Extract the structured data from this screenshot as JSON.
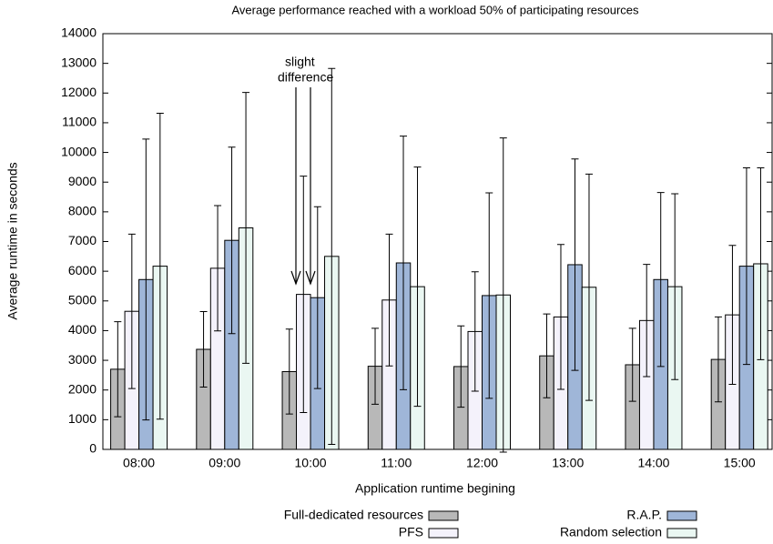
{
  "chart_data": {
    "type": "bar",
    "title": "Average performance reached with a workload 50% of participating resources",
    "x_label": "Application runtime begining",
    "y_label": "Average runtime in seconds",
    "annotation": [
      "slight",
      "difference"
    ],
    "categories": [
      "08:00",
      "09:00",
      "10:00",
      "11:00",
      "12:00",
      "13:00",
      "14:00",
      "15:00"
    ],
    "series": [
      {
        "name": "Full-dedicated resources",
        "color": "#b8b8b8",
        "values": [
          2700,
          3370,
          2620,
          2800,
          2790,
          3150,
          2850,
          3030
        ],
        "errors": [
          1600,
          1270,
          1430,
          1280,
          1370,
          1410,
          1230,
          1430
        ]
      },
      {
        "name": "PFS",
        "color": "#f4f2fb",
        "values": [
          4650,
          6100,
          5220,
          5030,
          3970,
          4460,
          4340,
          4530
        ],
        "errors": [
          2600,
          2110,
          3980,
          2220,
          2010,
          2440,
          1890,
          2340
        ]
      },
      {
        "name": "R.A.P.",
        "color": "#9fb6d8",
        "values": [
          5720,
          7040,
          5110,
          6280,
          5180,
          6220,
          5720,
          6170
        ],
        "errors": [
          4730,
          3140,
          3060,
          4270,
          3460,
          3560,
          2930,
          3310
        ]
      },
      {
        "name": "Random selection",
        "color": "#eaf7f2",
        "values": [
          6170,
          7460,
          6500,
          5480,
          5200,
          5460,
          5480,
          6250
        ],
        "errors": [
          5150,
          4560,
          6330,
          4030,
          5290,
          3810,
          3130,
          3230
        ]
      }
    ],
    "ylim": [
      0,
      14000
    ],
    "yticks": [
      0,
      1000,
      2000,
      3000,
      4000,
      5000,
      6000,
      7000,
      8000,
      9000,
      10000,
      11000,
      12000,
      13000,
      14000
    ],
    "grid": false,
    "legend": "bottom"
  }
}
